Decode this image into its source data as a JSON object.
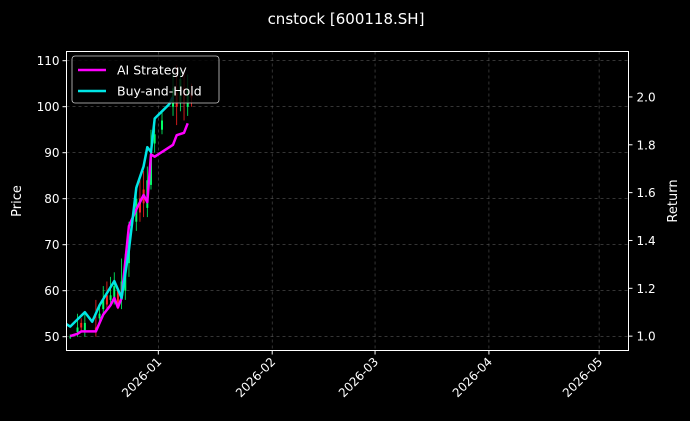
{
  "chart_data": {
    "type": "line",
    "title": "cnstock [600118.SH]",
    "ylabel_left": "Price",
    "ylabel_right": "Return",
    "x_ticks": [
      "2026-01",
      "2026-02",
      "2026-03",
      "2026-04",
      "2026-05"
    ],
    "x_range": [
      "2025-12-07",
      "2026-05-09"
    ],
    "y_left_ticks": [
      50,
      60,
      70,
      80,
      90,
      100,
      110
    ],
    "y_left_range": [
      47,
      112
    ],
    "y_right_ticks": [
      "1.0",
      "1.2",
      "1.4",
      "1.6",
      "1.8",
      "2.0"
    ],
    "y_right_range": [
      0.94,
      2.19
    ],
    "grid": true,
    "legend": {
      "position": "top-left"
    },
    "series": [
      {
        "name": "AI Strategy",
        "color": "#ff00ff",
        "axis": "right",
        "points": [
          [
            "2025-12-08",
            1.0
          ],
          [
            "2025-12-10",
            1.01
          ],
          [
            "2025-12-11",
            1.02
          ],
          [
            "2025-12-12",
            1.02
          ],
          [
            "2025-12-15",
            1.02
          ],
          [
            "2025-12-17",
            1.09
          ],
          [
            "2025-12-19",
            1.13
          ],
          [
            "2025-12-20",
            1.16
          ],
          [
            "2025-12-21",
            1.12
          ],
          [
            "2025-12-22",
            1.16
          ],
          [
            "2025-12-24",
            1.46
          ],
          [
            "2025-12-26",
            1.53
          ],
          [
            "2025-12-28",
            1.59
          ],
          [
            "2025-12-29",
            1.56
          ],
          [
            "2025-12-30",
            1.76
          ],
          [
            "2025-12-31",
            1.75
          ],
          [
            "2026-01-05",
            1.8
          ],
          [
            "2026-01-06",
            1.84
          ],
          [
            "2026-01-08",
            1.85
          ],
          [
            "2026-01-09",
            1.89
          ]
        ]
      },
      {
        "name": "Buy-and-Hold",
        "color": "#00e5e5",
        "axis": "right",
        "points": [
          [
            "2025-12-07",
            1.05
          ],
          [
            "2025-12-08",
            1.04
          ],
          [
            "2025-12-10",
            1.07
          ],
          [
            "2025-12-12",
            1.1
          ],
          [
            "2025-12-14",
            1.06
          ],
          [
            "2025-12-16",
            1.13
          ],
          [
            "2025-12-18",
            1.18
          ],
          [
            "2025-12-20",
            1.23
          ],
          [
            "2025-12-22",
            1.16
          ],
          [
            "2025-12-24",
            1.36
          ],
          [
            "2025-12-26",
            1.62
          ],
          [
            "2025-12-28",
            1.71
          ],
          [
            "2025-12-29",
            1.79
          ],
          [
            "2025-12-30",
            1.77
          ],
          [
            "2025-12-31",
            1.91
          ],
          [
            "2026-01-02",
            1.94
          ],
          [
            "2026-01-04",
            1.97
          ],
          [
            "2026-01-05",
            2.0
          ]
        ]
      }
    ],
    "candlesticks": {
      "axis": "left",
      "up_color": "#00ff66",
      "down_color": "#ff2222",
      "bars": [
        [
          "2025-12-08",
          50,
          50,
          49.5,
          50.5
        ],
        [
          "2025-12-10",
          51,
          52,
          50,
          55
        ],
        [
          "2025-12-11",
          53,
          52,
          51,
          54
        ],
        [
          "2025-12-12",
          51,
          53,
          50,
          55
        ],
        [
          "2025-12-15",
          52,
          51,
          50,
          58
        ],
        [
          "2025-12-16",
          54,
          55,
          53,
          57
        ],
        [
          "2025-12-17",
          56,
          58,
          55,
          61
        ],
        [
          "2025-12-18",
          59,
          57,
          56,
          62
        ],
        [
          "2025-12-19",
          58,
          59,
          57,
          63
        ],
        [
          "2025-12-20",
          58,
          61,
          57,
          64
        ],
        [
          "2025-12-21",
          60,
          57,
          56,
          60
        ],
        [
          "2025-12-22",
          58,
          62,
          56,
          67
        ],
        [
          "2025-12-23",
          60,
          65,
          58,
          68
        ],
        [
          "2025-12-24",
          66,
          72,
          63,
          75
        ],
        [
          "2025-12-26",
          75,
          80,
          73,
          83
        ],
        [
          "2025-12-27",
          80,
          77,
          75,
          84
        ],
        [
          "2025-12-28",
          82,
          79,
          76,
          86
        ],
        [
          "2025-12-29",
          78,
          84,
          76,
          87
        ],
        [
          "2025-12-30",
          83,
          90,
          82,
          95
        ],
        [
          "2025-12-31",
          92,
          94,
          90,
          97
        ],
        [
          "2026-01-02",
          95,
          97,
          94,
          99
        ],
        [
          "2026-01-05",
          100,
          104,
          98,
          107
        ],
        [
          "2026-01-06",
          103,
          100,
          96,
          109
        ],
        [
          "2026-01-07",
          101,
          106,
          99,
          108
        ],
        [
          "2026-01-08",
          104,
          101,
          97,
          108
        ],
        [
          "2026-01-09",
          100,
          104,
          98,
          107
        ],
        [
          "2026-01-10",
          103,
          102,
          100,
          105
        ]
      ]
    }
  }
}
